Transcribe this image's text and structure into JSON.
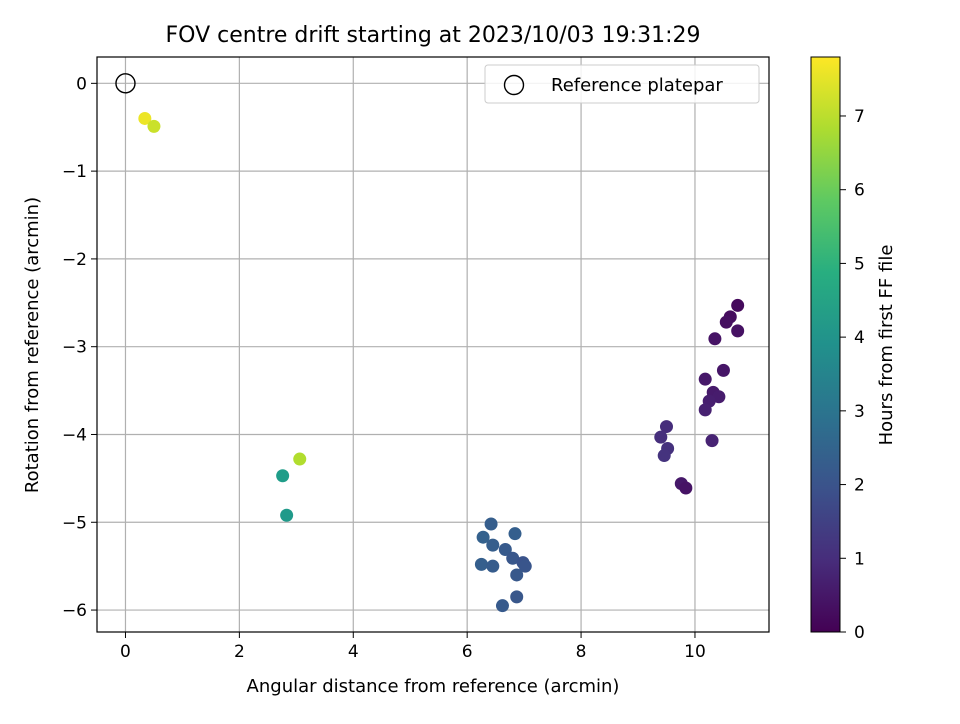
{
  "chart_data": {
    "type": "scatter",
    "title": "FOV centre drift starting at 2023/10/03 19:31:29",
    "xlabel": "Angular distance from reference (arcmin)",
    "ylabel": "Rotation from reference (arcmin)",
    "xlim": [
      -0.5,
      11.3
    ],
    "ylim": [
      -6.25,
      0.3
    ],
    "xticks": [
      0,
      2,
      4,
      6,
      8,
      10
    ],
    "yticks": [
      0,
      -1,
      -2,
      -3,
      -4,
      -5,
      -6
    ],
    "grid": true,
    "legend": {
      "position": "top-right",
      "entries": [
        "Reference platepar"
      ]
    },
    "reference_point": {
      "x": 0,
      "y": 0
    },
    "colorbar": {
      "label": "Hours from first FF file",
      "min": 0,
      "max": 7.8,
      "ticks": [
        0,
        1,
        2,
        3,
        4,
        5,
        6,
        7
      ],
      "colormap": "viridis"
    },
    "points": [
      {
        "x": 10.75,
        "y": -2.53,
        "hours": 0.2
      },
      {
        "x": 10.62,
        "y": -2.66,
        "hours": 0.25
      },
      {
        "x": 10.55,
        "y": -2.72,
        "hours": 0.3
      },
      {
        "x": 10.75,
        "y": -2.82,
        "hours": 0.35
      },
      {
        "x": 10.35,
        "y": -2.91,
        "hours": 0.4
      },
      {
        "x": 10.5,
        "y": -3.27,
        "hours": 0.45
      },
      {
        "x": 10.18,
        "y": -3.37,
        "hours": 0.5
      },
      {
        "x": 10.32,
        "y": -3.52,
        "hours": 0.55
      },
      {
        "x": 10.42,
        "y": -3.57,
        "hours": 0.6
      },
      {
        "x": 10.25,
        "y": -3.62,
        "hours": 0.65
      },
      {
        "x": 10.18,
        "y": -3.72,
        "hours": 0.7
      },
      {
        "x": 10.3,
        "y": -4.07,
        "hours": 0.75
      },
      {
        "x": 9.5,
        "y": -3.91,
        "hours": 1.0
      },
      {
        "x": 9.4,
        "y": -4.03,
        "hours": 1.05
      },
      {
        "x": 9.52,
        "y": -4.16,
        "hours": 1.1
      },
      {
        "x": 9.46,
        "y": -4.24,
        "hours": 1.15
      },
      {
        "x": 9.76,
        "y": -4.56,
        "hours": 0.5
      },
      {
        "x": 9.84,
        "y": -4.61,
        "hours": 0.4
      },
      {
        "x": 6.42,
        "y": -5.02,
        "hours": 2.3
      },
      {
        "x": 6.84,
        "y": -5.13,
        "hours": 2.35
      },
      {
        "x": 6.28,
        "y": -5.17,
        "hours": 2.4
      },
      {
        "x": 6.45,
        "y": -5.26,
        "hours": 2.3
      },
      {
        "x": 6.67,
        "y": -5.31,
        "hours": 2.2
      },
      {
        "x": 6.8,
        "y": -5.41,
        "hours": 2.1
      },
      {
        "x": 6.98,
        "y": -5.46,
        "hours": 2.0
      },
      {
        "x": 7.02,
        "y": -5.5,
        "hours": 2.05
      },
      {
        "x": 6.25,
        "y": -5.48,
        "hours": 2.35
      },
      {
        "x": 6.45,
        "y": -5.5,
        "hours": 2.25
      },
      {
        "x": 6.87,
        "y": -5.6,
        "hours": 2.15
      },
      {
        "x": 6.87,
        "y": -5.85,
        "hours": 2.1
      },
      {
        "x": 6.62,
        "y": -5.95,
        "hours": 2.2
      },
      {
        "x": 3.06,
        "y": -4.28,
        "hours": 6.9
      },
      {
        "x": 2.76,
        "y": -4.47,
        "hours": 4.3
      },
      {
        "x": 2.83,
        "y": -4.92,
        "hours": 4.2
      },
      {
        "x": 0.34,
        "y": -0.4,
        "hours": 7.6
      },
      {
        "x": 0.5,
        "y": -0.49,
        "hours": 7.2
      }
    ]
  }
}
